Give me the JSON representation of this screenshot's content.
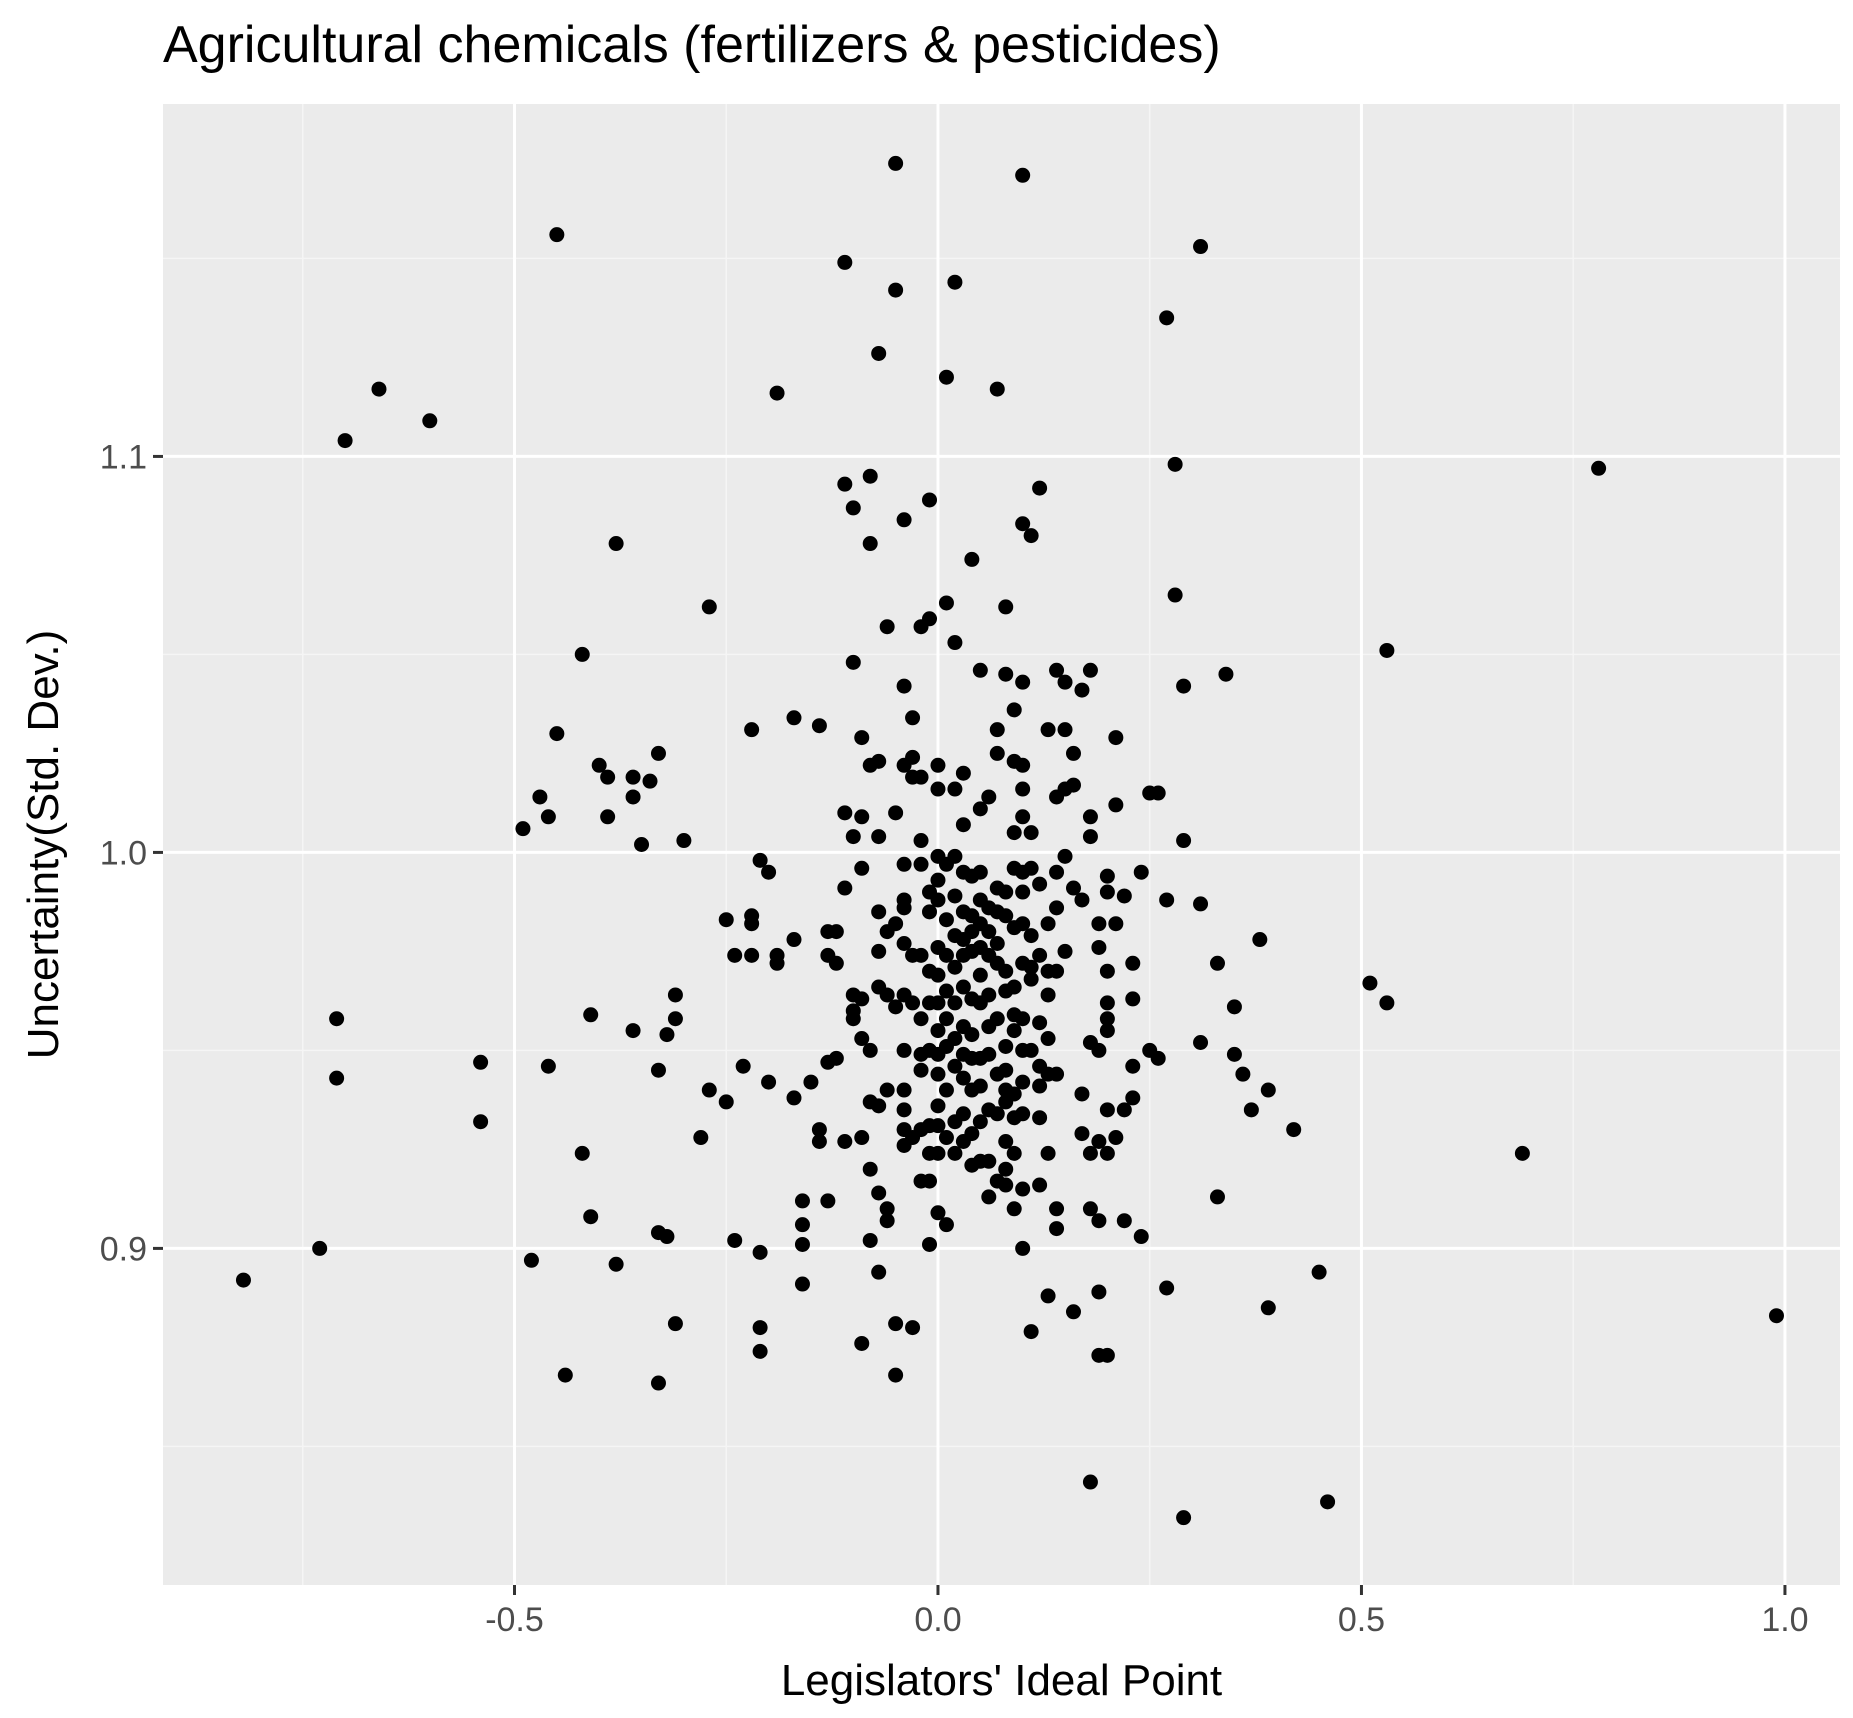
{
  "chart_data": {
    "type": "scatter",
    "title": "Agricultural chemicals (fertilizers & pesticides)",
    "xlabel": "Legislators' Ideal Point",
    "ylabel": "Uncertainty(Std. Dev.)",
    "xlim": [
      -0.915,
      1.065
    ],
    "ylim": [
      0.815,
      1.189
    ],
    "x_ticks": [
      -0.5,
      0.0,
      0.5,
      1.0
    ],
    "x_tick_labels": [
      "-0.5",
      "0.0",
      "0.5",
      "1.0"
    ],
    "y_ticks": [
      0.9,
      1.0,
      1.1
    ],
    "y_tick_labels": [
      "0.9",
      "1.0",
      "1.1"
    ],
    "grid": true,
    "colors": {
      "panel": "#ebebeb",
      "grid_major": "#ffffff",
      "grid_minor": "#f5f5f5",
      "point": "#000000",
      "tick_text": "#4d4d4d",
      "tick_mark": "#333333"
    },
    "points": [
      [
        -0.82,
        0.892
      ],
      [
        -0.73,
        0.9
      ],
      [
        -0.71,
        0.958
      ],
      [
        -0.71,
        0.943
      ],
      [
        -0.7,
        1.104
      ],
      [
        -0.66,
        1.117
      ],
      [
        -0.6,
        1.109
      ],
      [
        -0.54,
        0.947
      ],
      [
        -0.54,
        0.932
      ],
      [
        -0.49,
        1.006
      ],
      [
        -0.48,
        0.897
      ],
      [
        -0.47,
        1.014
      ],
      [
        -0.46,
        1.009
      ],
      [
        -0.46,
        0.946
      ],
      [
        -0.45,
        1.03
      ],
      [
        -0.45,
        1.156
      ],
      [
        -0.44,
        0.868
      ],
      [
        -0.42,
        1.05
      ],
      [
        -0.42,
        0.924
      ],
      [
        -0.41,
        0.908
      ],
      [
        -0.41,
        0.959
      ],
      [
        -0.4,
        1.022
      ],
      [
        -0.39,
        1.019
      ],
      [
        -0.39,
        1.009
      ],
      [
        -0.38,
        1.078
      ],
      [
        -0.38,
        0.896
      ],
      [
        -0.36,
        0.955
      ],
      [
        -0.36,
        1.019
      ],
      [
        -0.36,
        1.014
      ],
      [
        -0.35,
        1.002
      ],
      [
        -0.34,
        1.018
      ],
      [
        -0.33,
        1.025
      ],
      [
        -0.33,
        0.945
      ],
      [
        -0.33,
        0.904
      ],
      [
        -0.32,
        0.903
      ],
      [
        -0.32,
        0.954
      ],
      [
        -0.31,
        0.964
      ],
      [
        -0.31,
        0.958
      ],
      [
        -0.31,
        0.881
      ],
      [
        -0.3,
        1.003
      ],
      [
        -0.33,
        0.866
      ],
      [
        -0.28,
        0.928
      ],
      [
        -0.27,
        0.94
      ],
      [
        -0.27,
        1.062
      ],
      [
        -0.25,
        0.937
      ],
      [
        -0.25,
        0.983
      ],
      [
        -0.24,
        0.974
      ],
      [
        -0.24,
        0.902
      ],
      [
        -0.23,
        0.946
      ],
      [
        -0.22,
        1.031
      ],
      [
        -0.22,
        0.984
      ],
      [
        -0.22,
        0.982
      ],
      [
        -0.22,
        0.974
      ],
      [
        -0.21,
        0.998
      ],
      [
        -0.21,
        0.899
      ],
      [
        -0.21,
        0.88
      ],
      [
        -0.21,
        0.874
      ],
      [
        -0.2,
        0.995
      ],
      [
        -0.2,
        0.942
      ],
      [
        -0.19,
        0.972
      ],
      [
        -0.19,
        0.974
      ],
      [
        -0.19,
        1.116
      ],
      [
        -0.17,
        0.938
      ],
      [
        -0.17,
        0.978
      ],
      [
        -0.17,
        1.034
      ],
      [
        -0.16,
        0.906
      ],
      [
        -0.16,
        0.901
      ],
      [
        -0.16,
        0.891
      ],
      [
        -0.16,
        0.912
      ],
      [
        -0.15,
        0.942
      ],
      [
        -0.14,
        0.93
      ],
      [
        -0.14,
        0.927
      ],
      [
        -0.14,
        1.032
      ],
      [
        -0.13,
        0.98
      ],
      [
        -0.13,
        0.974
      ],
      [
        -0.13,
        0.947
      ],
      [
        -0.13,
        0.912
      ],
      [
        -0.12,
        0.948
      ],
      [
        -0.12,
        0.972
      ],
      [
        -0.12,
        0.98
      ],
      [
        -0.11,
        0.991
      ],
      [
        -0.11,
        1.01
      ],
      [
        -0.11,
        0.927
      ],
      [
        -0.11,
        1.093
      ],
      [
        -0.11,
        1.149
      ],
      [
        -0.1,
        1.004
      ],
      [
        -0.1,
        0.964
      ],
      [
        -0.1,
        0.96
      ],
      [
        -0.1,
        1.087
      ],
      [
        -0.1,
        0.958
      ],
      [
        -0.1,
        1.048
      ],
      [
        -0.09,
        0.996
      ],
      [
        -0.09,
        1.029
      ],
      [
        -0.09,
        0.963
      ],
      [
        -0.09,
        0.953
      ],
      [
        -0.09,
        0.928
      ],
      [
        -0.09,
        0.876
      ],
      [
        -0.09,
        1.009
      ],
      [
        -0.08,
        0.95
      ],
      [
        -0.08,
        1.078
      ],
      [
        -0.08,
        1.095
      ],
      [
        -0.08,
        0.902
      ],
      [
        -0.08,
        0.92
      ],
      [
        -0.08,
        0.937
      ],
      [
        -0.08,
        1.022
      ],
      [
        -0.07,
        0.975
      ],
      [
        -0.07,
        0.966
      ],
      [
        -0.07,
        0.985
      ],
      [
        -0.07,
        1.023
      ],
      [
        -0.07,
        0.936
      ],
      [
        -0.07,
        0.914
      ],
      [
        -0.07,
        0.894
      ],
      [
        -0.07,
        1.004
      ],
      [
        -0.07,
        1.126
      ],
      [
        -0.06,
        0.98
      ],
      [
        -0.06,
        0.94
      ],
      [
        -0.06,
        0.91
      ],
      [
        -0.06,
        0.907
      ],
      [
        -0.06,
        1.057
      ],
      [
        -0.06,
        0.964
      ],
      [
        -0.05,
        1.174
      ],
      [
        -0.05,
        0.982
      ],
      [
        -0.05,
        1.01
      ],
      [
        -0.05,
        0.961
      ],
      [
        -0.05,
        0.868
      ],
      [
        -0.05,
        0.881
      ],
      [
        -0.05,
        1.142
      ],
      [
        -0.04,
        0.997
      ],
      [
        -0.04,
        0.988
      ],
      [
        -0.04,
        0.986
      ],
      [
        -0.04,
        0.977
      ],
      [
        -0.04,
        0.964
      ],
      [
        -0.04,
        0.95
      ],
      [
        -0.04,
        0.94
      ],
      [
        -0.04,
        0.935
      ],
      [
        -0.04,
        0.93
      ],
      [
        -0.04,
        0.926
      ],
      [
        -0.04,
        1.084
      ],
      [
        -0.04,
        1.022
      ],
      [
        -0.04,
        1.042
      ],
      [
        -0.03,
        0.974
      ],
      [
        -0.03,
        0.962
      ],
      [
        -0.03,
        0.928
      ],
      [
        -0.03,
        1.024
      ],
      [
        -0.03,
        1.034
      ],
      [
        -0.03,
        1.019
      ],
      [
        -0.03,
        0.88
      ],
      [
        -0.02,
        0.974
      ],
      [
        -0.02,
        0.958
      ],
      [
        -0.02,
        0.949
      ],
      [
        -0.02,
        0.945
      ],
      [
        -0.02,
        0.93
      ],
      [
        -0.02,
        0.917
      ],
      [
        -0.02,
        1.003
      ],
      [
        -0.02,
        0.997
      ],
      [
        -0.02,
        1.057
      ],
      [
        -0.02,
        1.019
      ],
      [
        -0.01,
        0.99
      ],
      [
        -0.01,
        0.985
      ],
      [
        -0.01,
        0.97
      ],
      [
        -0.01,
        0.962
      ],
      [
        -0.01,
        0.95
      ],
      [
        -0.01,
        0.931
      ],
      [
        -0.01,
        0.924
      ],
      [
        -0.01,
        0.917
      ],
      [
        -0.01,
        0.901
      ],
      [
        -0.01,
        1.059
      ],
      [
        -0.01,
        1.089
      ],
      [
        0.0,
        0.999
      ],
      [
        0.0,
        0.993
      ],
      [
        0.0,
        0.988
      ],
      [
        0.0,
        0.976
      ],
      [
        0.0,
        0.969
      ],
      [
        0.0,
        0.962
      ],
      [
        0.0,
        0.955
      ],
      [
        0.0,
        0.949
      ],
      [
        0.0,
        0.944
      ],
      [
        0.0,
        0.936
      ],
      [
        0.0,
        0.931
      ],
      [
        0.0,
        0.924
      ],
      [
        0.0,
        0.909
      ],
      [
        0.0,
        1.022
      ],
      [
        0.0,
        1.016
      ],
      [
        0.01,
        0.997
      ],
      [
        0.01,
        0.983
      ],
      [
        0.01,
        0.974
      ],
      [
        0.01,
        0.965
      ],
      [
        0.01,
        0.958
      ],
      [
        0.01,
        0.951
      ],
      [
        0.01,
        0.94
      ],
      [
        0.01,
        0.928
      ],
      [
        0.01,
        0.906
      ],
      [
        0.01,
        1.063
      ],
      [
        0.01,
        1.12
      ],
      [
        0.02,
        0.999
      ],
      [
        0.02,
        0.989
      ],
      [
        0.02,
        0.979
      ],
      [
        0.02,
        0.971
      ],
      [
        0.02,
        0.962
      ],
      [
        0.02,
        0.953
      ],
      [
        0.02,
        0.946
      ],
      [
        0.02,
        0.932
      ],
      [
        0.02,
        0.924
      ],
      [
        0.02,
        1.016
      ],
      [
        0.02,
        1.053
      ],
      [
        0.02,
        1.144
      ],
      [
        0.03,
        0.995
      ],
      [
        0.03,
        0.985
      ],
      [
        0.03,
        0.978
      ],
      [
        0.03,
        0.974
      ],
      [
        0.03,
        0.966
      ],
      [
        0.03,
        0.956
      ],
      [
        0.03,
        0.949
      ],
      [
        0.03,
        0.943
      ],
      [
        0.03,
        0.934
      ],
      [
        0.03,
        0.927
      ],
      [
        0.03,
        1.02
      ],
      [
        0.03,
        1.007
      ],
      [
        0.04,
        0.994
      ],
      [
        0.04,
        0.984
      ],
      [
        0.04,
        0.98
      ],
      [
        0.04,
        0.975
      ],
      [
        0.04,
        0.963
      ],
      [
        0.04,
        0.954
      ],
      [
        0.04,
        0.948
      ],
      [
        0.04,
        0.94
      ],
      [
        0.04,
        0.929
      ],
      [
        0.04,
        0.921
      ],
      [
        0.04,
        1.074
      ],
      [
        0.05,
        0.995
      ],
      [
        0.05,
        0.988
      ],
      [
        0.05,
        0.982
      ],
      [
        0.05,
        0.976
      ],
      [
        0.05,
        0.969
      ],
      [
        0.05,
        0.962
      ],
      [
        0.05,
        0.948
      ],
      [
        0.05,
        0.941
      ],
      [
        0.05,
        0.932
      ],
      [
        0.05,
        0.922
      ],
      [
        0.05,
        1.011
      ],
      [
        0.05,
        1.046
      ],
      [
        0.06,
        0.986
      ],
      [
        0.06,
        0.98
      ],
      [
        0.06,
        0.974
      ],
      [
        0.06,
        0.964
      ],
      [
        0.06,
        0.956
      ],
      [
        0.06,
        0.949
      ],
      [
        0.06,
        0.935
      ],
      [
        0.06,
        0.922
      ],
      [
        0.06,
        0.913
      ],
      [
        0.06,
        1.014
      ],
      [
        0.07,
        0.991
      ],
      [
        0.07,
        0.985
      ],
      [
        0.07,
        0.977
      ],
      [
        0.07,
        0.972
      ],
      [
        0.07,
        0.958
      ],
      [
        0.07,
        0.944
      ],
      [
        0.07,
        0.934
      ],
      [
        0.07,
        0.917
      ],
      [
        0.07,
        1.025
      ],
      [
        0.07,
        1.031
      ],
      [
        0.07,
        1.117
      ],
      [
        0.08,
        0.99
      ],
      [
        0.08,
        0.984
      ],
      [
        0.08,
        0.97
      ],
      [
        0.08,
        0.965
      ],
      [
        0.08,
        0.951
      ],
      [
        0.08,
        0.945
      ],
      [
        0.08,
        0.94
      ],
      [
        0.08,
        0.937
      ],
      [
        0.08,
        0.927
      ],
      [
        0.08,
        0.92
      ],
      [
        0.08,
        0.916
      ],
      [
        0.08,
        1.045
      ],
      [
        0.08,
        1.062
      ],
      [
        0.09,
        0.996
      ],
      [
        0.09,
        0.981
      ],
      [
        0.09,
        0.966
      ],
      [
        0.09,
        0.959
      ],
      [
        0.09,
        0.955
      ],
      [
        0.09,
        0.939
      ],
      [
        0.09,
        0.933
      ],
      [
        0.09,
        0.924
      ],
      [
        0.09,
        0.91
      ],
      [
        0.09,
        1.036
      ],
      [
        0.09,
        1.023
      ],
      [
        0.09,
        1.005
      ],
      [
        0.1,
        0.995
      ],
      [
        0.1,
        0.99
      ],
      [
        0.1,
        0.982
      ],
      [
        0.1,
        0.972
      ],
      [
        0.1,
        0.958
      ],
      [
        0.1,
        0.95
      ],
      [
        0.1,
        0.942
      ],
      [
        0.1,
        0.934
      ],
      [
        0.1,
        0.915
      ],
      [
        0.1,
        0.9
      ],
      [
        0.1,
        1.022
      ],
      [
        0.1,
        1.016
      ],
      [
        0.1,
        1.009
      ],
      [
        0.1,
        1.043
      ],
      [
        0.1,
        1.083
      ],
      [
        0.1,
        1.171
      ],
      [
        0.11,
        0.996
      ],
      [
        0.11,
        0.979
      ],
      [
        0.11,
        0.971
      ],
      [
        0.11,
        0.968
      ],
      [
        0.11,
        0.95
      ],
      [
        0.11,
        0.879
      ],
      [
        0.11,
        1.005
      ],
      [
        0.11,
        1.08
      ],
      [
        0.12,
        0.992
      ],
      [
        0.12,
        0.974
      ],
      [
        0.12,
        0.957
      ],
      [
        0.12,
        0.946
      ],
      [
        0.12,
        0.941
      ],
      [
        0.12,
        0.933
      ],
      [
        0.12,
        0.916
      ],
      [
        0.12,
        1.092
      ],
      [
        0.13,
        0.982
      ],
      [
        0.13,
        0.97
      ],
      [
        0.13,
        0.964
      ],
      [
        0.13,
        0.953
      ],
      [
        0.13,
        0.944
      ],
      [
        0.13,
        0.924
      ],
      [
        0.13,
        0.888
      ],
      [
        0.13,
        1.031
      ],
      [
        0.14,
        0.995
      ],
      [
        0.14,
        0.986
      ],
      [
        0.14,
        0.97
      ],
      [
        0.14,
        0.944
      ],
      [
        0.14,
        0.91
      ],
      [
        0.14,
        0.905
      ],
      [
        0.14,
        1.014
      ],
      [
        0.14,
        1.046
      ],
      [
        0.15,
        0.999
      ],
      [
        0.15,
        0.975
      ],
      [
        0.15,
        1.031
      ],
      [
        0.15,
        1.016
      ],
      [
        0.15,
        1.043
      ],
      [
        0.16,
        0.991
      ],
      [
        0.16,
        0.884
      ],
      [
        0.16,
        1.025
      ],
      [
        0.16,
        1.017
      ],
      [
        0.17,
        0.988
      ],
      [
        0.17,
        0.939
      ],
      [
        0.17,
        0.929
      ],
      [
        0.17,
        1.041
      ],
      [
        0.18,
        1.009
      ],
      [
        0.18,
        1.004
      ],
      [
        0.18,
        0.952
      ],
      [
        0.18,
        0.924
      ],
      [
        0.18,
        0.91
      ],
      [
        0.18,
        1.046
      ],
      [
        0.18,
        0.841
      ],
      [
        0.19,
        0.982
      ],
      [
        0.19,
        0.976
      ],
      [
        0.19,
        0.95
      ],
      [
        0.19,
        0.927
      ],
      [
        0.19,
        0.907
      ],
      [
        0.19,
        0.889
      ],
      [
        0.19,
        0.873
      ],
      [
        0.2,
        0.994
      ],
      [
        0.2,
        0.99
      ],
      [
        0.2,
        0.97
      ],
      [
        0.2,
        0.962
      ],
      [
        0.2,
        0.958
      ],
      [
        0.2,
        0.955
      ],
      [
        0.2,
        0.935
      ],
      [
        0.2,
        0.924
      ],
      [
        0.2,
        0.873
      ],
      [
        0.21,
        0.982
      ],
      [
        0.21,
        1.012
      ],
      [
        0.21,
        1.029
      ],
      [
        0.21,
        0.928
      ],
      [
        0.22,
        0.989
      ],
      [
        0.22,
        0.907
      ],
      [
        0.22,
        0.935
      ],
      [
        0.23,
        0.946
      ],
      [
        0.23,
        0.972
      ],
      [
        0.23,
        0.963
      ],
      [
        0.23,
        0.938
      ],
      [
        0.24,
        0.995
      ],
      [
        0.24,
        0.903
      ],
      [
        0.25,
        1.015
      ],
      [
        0.25,
        0.95
      ],
      [
        0.26,
        0.948
      ],
      [
        0.26,
        1.015
      ],
      [
        0.27,
        1.135
      ],
      [
        0.27,
        0.89
      ],
      [
        0.27,
        0.988
      ],
      [
        0.28,
        1.098
      ],
      [
        0.28,
        1.065
      ],
      [
        0.29,
        1.042
      ],
      [
        0.29,
        1.003
      ],
      [
        0.29,
        0.832
      ],
      [
        0.31,
        0.987
      ],
      [
        0.31,
        0.952
      ],
      [
        0.31,
        1.153
      ],
      [
        0.33,
        0.972
      ],
      [
        0.33,
        0.913
      ],
      [
        0.34,
        1.045
      ],
      [
        0.35,
        0.961
      ],
      [
        0.35,
        0.949
      ],
      [
        0.36,
        0.944
      ],
      [
        0.37,
        0.935
      ],
      [
        0.38,
        0.978
      ],
      [
        0.39,
        0.94
      ],
      [
        0.39,
        0.885
      ],
      [
        0.42,
        0.93
      ],
      [
        0.45,
        0.894
      ],
      [
        0.46,
        0.836
      ],
      [
        0.51,
        0.967
      ],
      [
        0.53,
        0.962
      ],
      [
        0.53,
        1.051
      ],
      [
        0.69,
        0.924
      ],
      [
        0.78,
        1.097
      ],
      [
        0.99,
        0.883
      ]
    ]
  }
}
